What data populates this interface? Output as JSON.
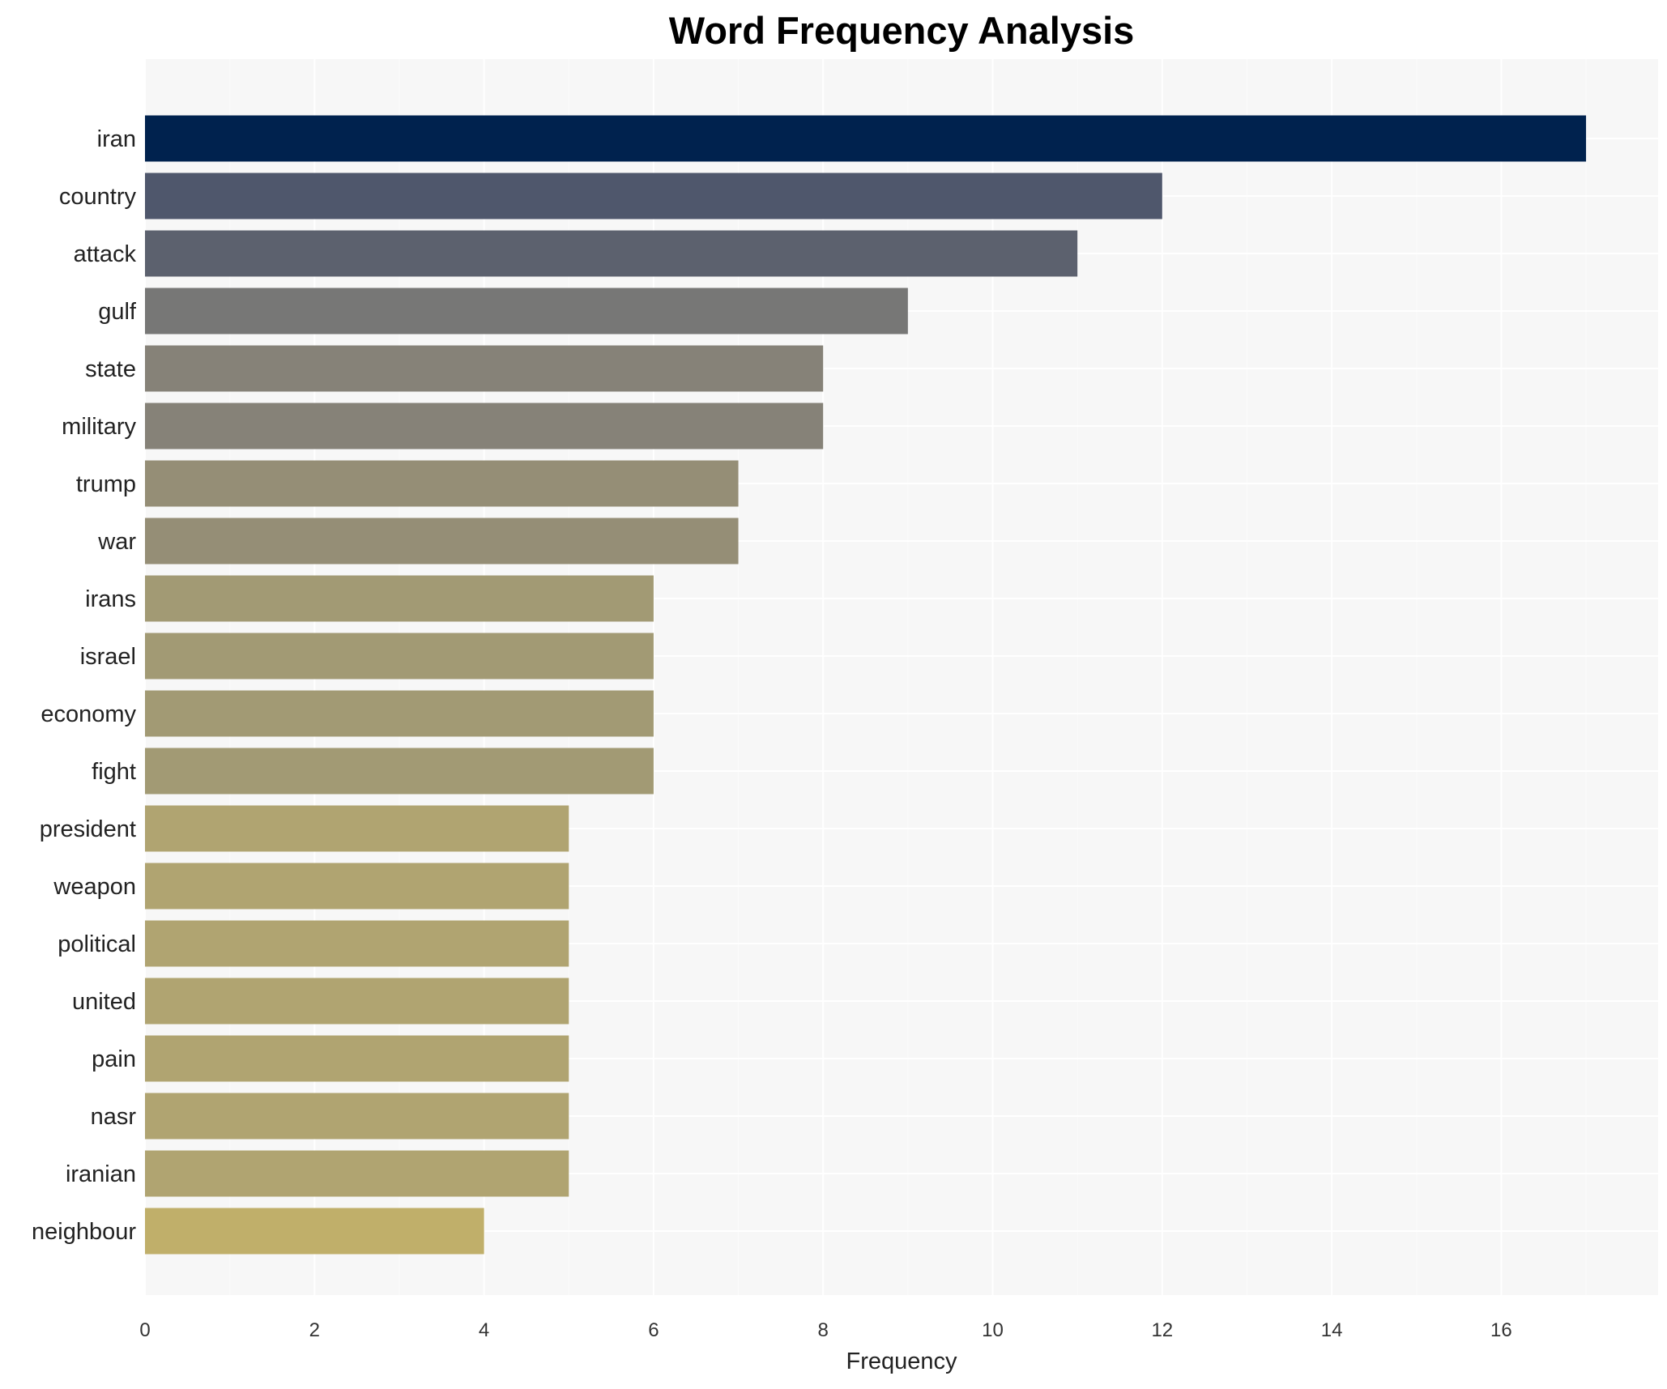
{
  "chart_data": {
    "type": "bar",
    "orientation": "horizontal",
    "title": "Word Frequency Analysis",
    "xlabel": "Frequency",
    "ylabel": "",
    "xlim": [
      0,
      17.85
    ],
    "xticks": [
      0,
      2,
      4,
      6,
      8,
      10,
      12,
      14,
      16
    ],
    "grid": true,
    "categories": [
      "iran",
      "country",
      "attack",
      "gulf",
      "state",
      "military",
      "trump",
      "war",
      "irans",
      "israel",
      "economy",
      "fight",
      "president",
      "weapon",
      "political",
      "united",
      "pain",
      "nasr",
      "iranian",
      "neighbour"
    ],
    "values": [
      17,
      12,
      11,
      9,
      8,
      8,
      7,
      7,
      6,
      6,
      6,
      6,
      5,
      5,
      5,
      5,
      5,
      5,
      5,
      4
    ],
    "colors": [
      "#00224e",
      "#4f576c",
      "#5c616e",
      "#777776",
      "#868278",
      "#868278",
      "#958e76",
      "#958e76",
      "#a29a74",
      "#a29a74",
      "#a29a74",
      "#a29a74",
      "#b0a471",
      "#b0a471",
      "#b0a471",
      "#b0a471",
      "#b0a471",
      "#b0a471",
      "#b0a471",
      "#c0af6a"
    ],
    "background": "#f7f7f7"
  }
}
